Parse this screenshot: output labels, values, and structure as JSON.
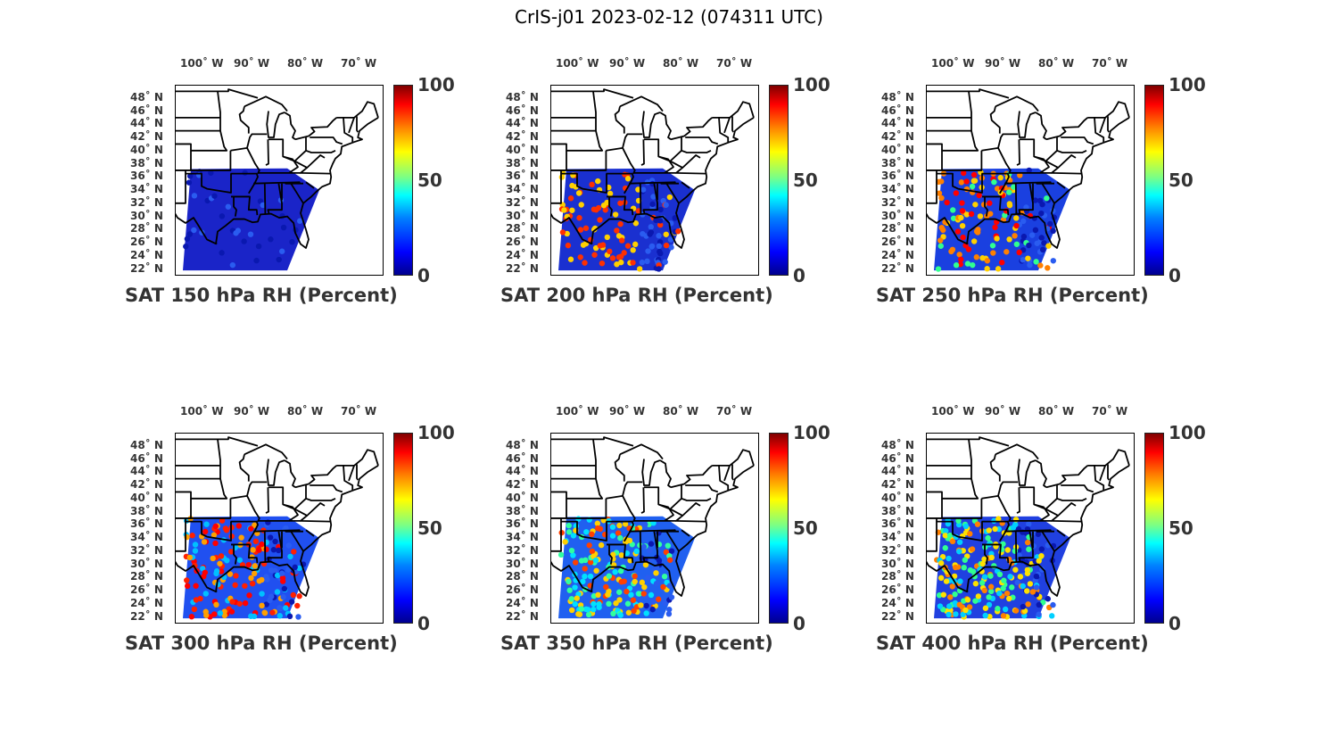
{
  "figure": {
    "title": "CrIS-j01 2023-02-12 (074311 UTC)"
  },
  "axes": {
    "lon_ticks": [
      "100˚ W",
      "90˚ W",
      "80˚ W",
      "70˚ W"
    ],
    "lat_ticks": [
      "48˚ N",
      "46˚ N",
      "44˚ N",
      "42˚ N",
      "40˚ N",
      "38˚ N",
      "36˚ N",
      "34˚ N",
      "32˚ N",
      "30˚ N",
      "28˚ N",
      "26˚ N",
      "24˚ N",
      "22˚ N"
    ]
  },
  "colorbar": {
    "ticks": [
      "100",
      "50",
      "0"
    ],
    "range": [
      0,
      100
    ],
    "colormap": "jet"
  },
  "panels": [
    {
      "caption": "SAT 150 hPa RH (Percent)",
      "level_hpa": 150,
      "dominant_color": "#1a24c8",
      "accent_colors": []
    },
    {
      "caption": "SAT 200 hPa RH (Percent)",
      "level_hpa": 200,
      "dominant_color": "#1a30d0",
      "accent_colors": [
        "#ff3000",
        "#ffd000"
      ]
    },
    {
      "caption": "SAT 250 hPa RH (Percent)",
      "level_hpa": 250,
      "dominant_color": "#1a40e0",
      "accent_colors": [
        "#ff8000",
        "#ff0000",
        "#30ff90",
        "#ffd000"
      ]
    },
    {
      "caption": "SAT 300 hPa RH (Percent)",
      "level_hpa": 300,
      "dominant_color": "#2050f0",
      "accent_colors": [
        "#ff2000",
        "#ffa000",
        "#ff0000",
        "#00c0ff"
      ]
    },
    {
      "caption": "SAT 350 hPa RH (Percent)",
      "level_hpa": 350,
      "dominant_color": "#2060f0",
      "accent_colors": [
        "#ffd000",
        "#30ffa0",
        "#ff4000",
        "#00e0ff"
      ]
    },
    {
      "caption": "SAT 400 hPa RH (Percent)",
      "level_hpa": 400,
      "dominant_color": "#2040e0",
      "accent_colors": [
        "#ffe000",
        "#30ff90",
        "#ff8000",
        "#00d0ff"
      ]
    }
  ]
}
